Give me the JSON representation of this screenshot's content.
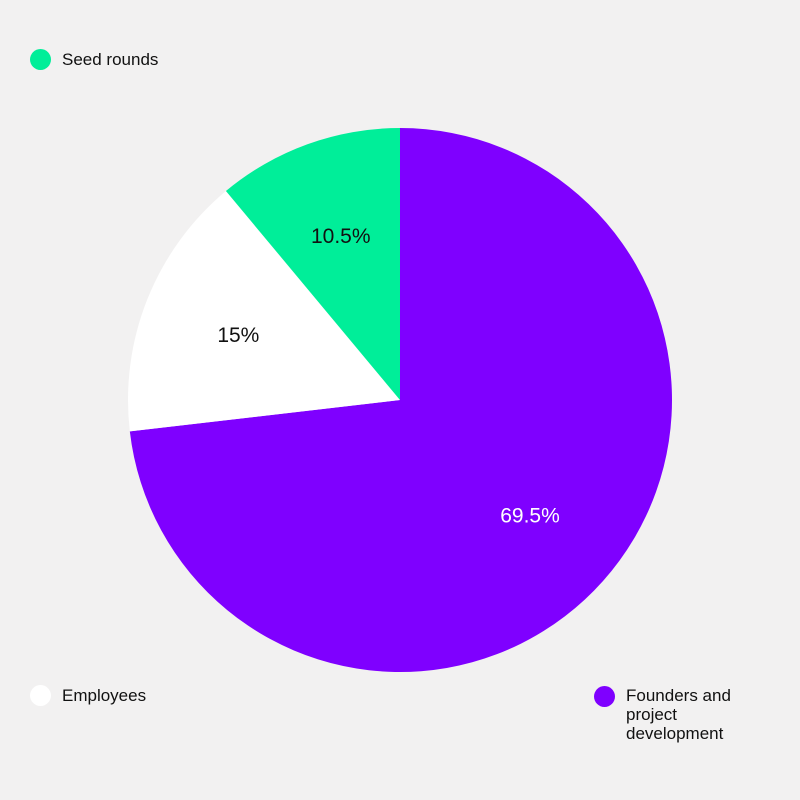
{
  "chart_data": {
    "type": "pie",
    "title": "",
    "slices": [
      {
        "name": "Founders and project development",
        "value": 69.5,
        "label": "69.5%",
        "color": "#7f00ff",
        "label_color": "#ffffff"
      },
      {
        "name": "Employees",
        "value": 15,
        "label": "15%",
        "color": "#ffffff",
        "label_color": "#111111"
      },
      {
        "name": "Seed rounds",
        "value": 10.5,
        "label": "10.5%",
        "color": "#00ee99",
        "label_color": "#111111"
      }
    ],
    "start_angle": "12 o'clock",
    "direction": "clockwise",
    "legend": [
      {
        "name": "Seed rounds",
        "color": "#00ee99",
        "placement": "top-left"
      },
      {
        "name": "Employees",
        "color": "#ffffff",
        "placement": "bottom-left"
      },
      {
        "name": "Founders and\nproject\ndevelopment",
        "color": "#7f00ff",
        "placement": "bottom-right"
      }
    ]
  }
}
